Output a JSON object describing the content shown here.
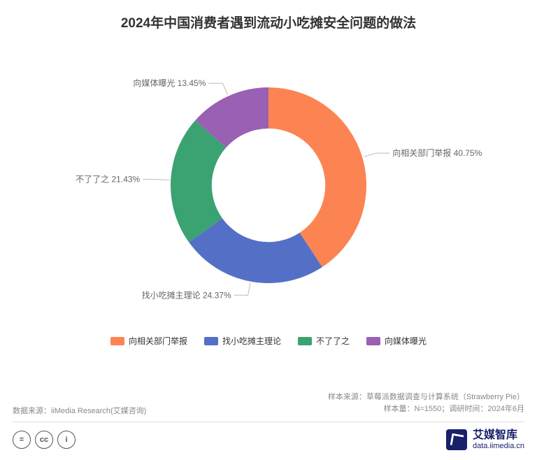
{
  "title": {
    "text": "2024年中国消费者遇到流动小吃摊安全问题的做法",
    "fontsize": 19,
    "color": "#333333"
  },
  "chart": {
    "type": "donut",
    "inner_radius_ratio": 0.58,
    "outer_radius": 140,
    "background_color": "#ffffff",
    "start_angle_deg": -90,
    "slices": [
      {
        "label": "向相关部门举报",
        "value": 40.75,
        "color": "#fc8452",
        "label_text": "向相关部门举报 40.75%"
      },
      {
        "label": "找小吃摊主理论",
        "value": 24.37,
        "color": "#5470c6",
        "label_text": "找小吃摊主理论 24.37%"
      },
      {
        "label": "不了了之",
        "value": 21.43,
        "color": "#3ba272",
        "label_text": "不了了之 21.43%"
      },
      {
        "label": "向媒体曝光",
        "value": 13.45,
        "color": "#9a60b4",
        "label_text": "向媒体曝光 13.45%"
      }
    ],
    "label_fontsize": 12,
    "label_color": "#666666",
    "leader_color": "#bbbbbb"
  },
  "legend": {
    "items": [
      {
        "label": "向相关部门举报",
        "color": "#fc8452"
      },
      {
        "label": "找小吃摊主理论",
        "color": "#5470c6"
      },
      {
        "label": "不了了之",
        "color": "#3ba272"
      },
      {
        "label": "向媒体曝光",
        "color": "#9a60b4"
      }
    ],
    "fontsize": 12
  },
  "meta": {
    "left": "数据来源：iiMedia Research(艾媒咨询)",
    "right_line1": "样本来源：草莓派数据调查与计算系统（Strawberry Pie）",
    "right_line2": "样本量：N=1550；调研时间：2024年6月"
  },
  "license": {
    "icon1": "=",
    "icon2": "cc",
    "icon3": "i"
  },
  "brand": {
    "name": "艾媒智库",
    "url": "data.iimedia.cn"
  }
}
